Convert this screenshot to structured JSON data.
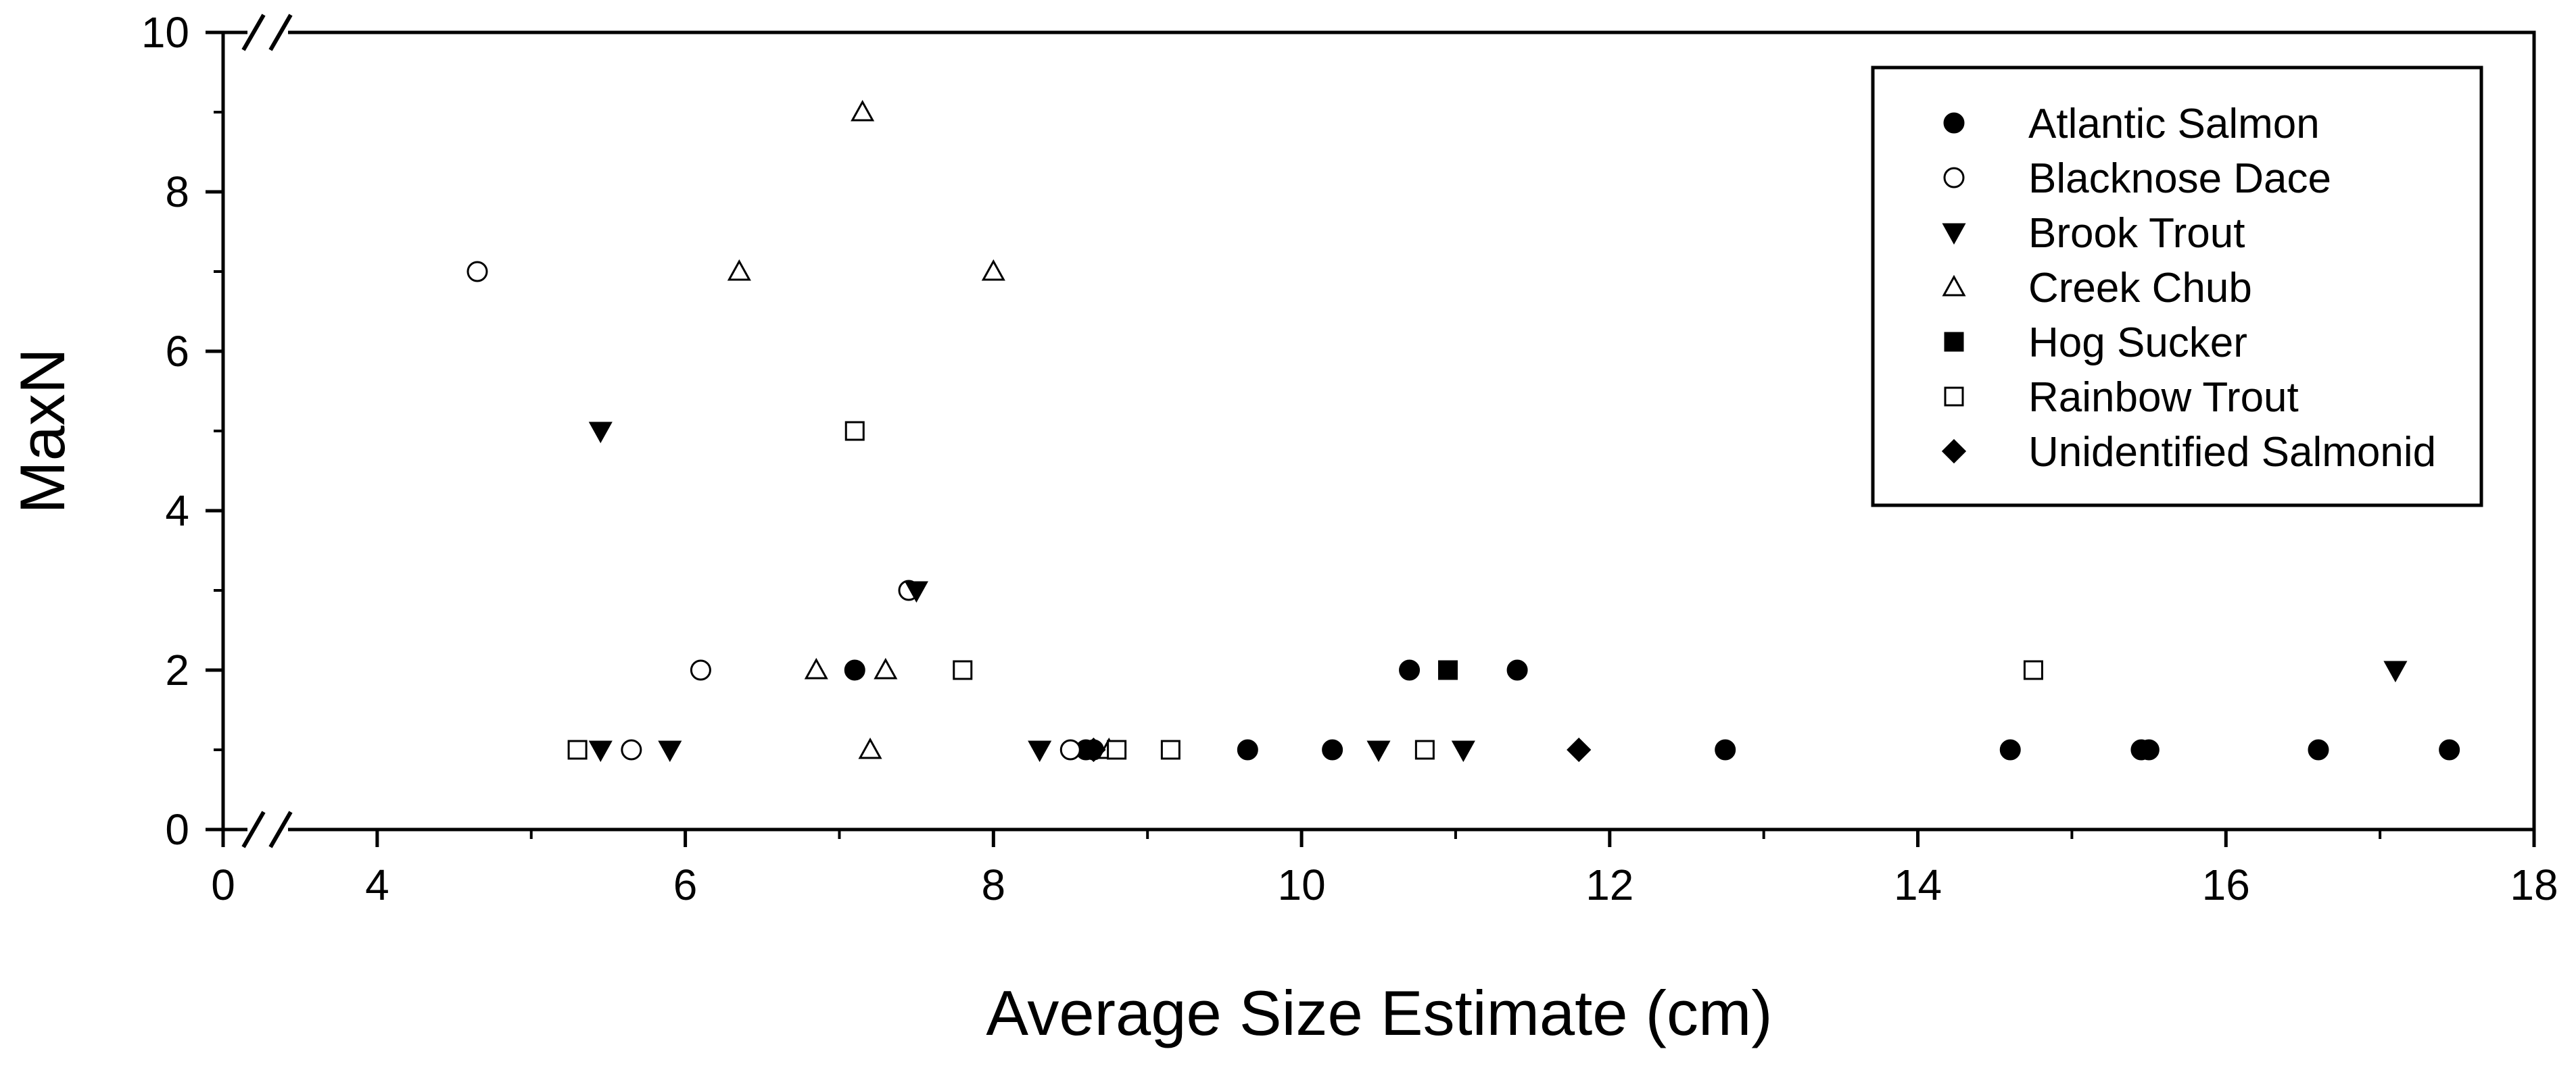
{
  "chart_data": {
    "type": "scatter",
    "title": "",
    "xlabel": "Average Size Estimate (cm)",
    "ylabel": "MaxN",
    "xlim": [
      3,
      18
    ],
    "ylim": [
      0,
      10
    ],
    "x_axis_break": "between 0 and 4",
    "y_axis_break": "at 0 and 10 (left axis)",
    "x_ticks": [
      {
        "value": 0,
        "label": "0"
      },
      {
        "value": 4,
        "label": "4"
      },
      {
        "value": 6,
        "label": "6"
      },
      {
        "value": 8,
        "label": "8"
      },
      {
        "value": 10,
        "label": "10"
      },
      {
        "value": 12,
        "label": "12"
      },
      {
        "value": 14,
        "label": "14"
      },
      {
        "value": 16,
        "label": "16"
      },
      {
        "value": 18,
        "label": "18"
      }
    ],
    "y_ticks": [
      {
        "value": 0,
        "label": "0"
      },
      {
        "value": 2,
        "label": "2"
      },
      {
        "value": 4,
        "label": "4"
      },
      {
        "value": 6,
        "label": "6"
      },
      {
        "value": 8,
        "label": "8"
      },
      {
        "value": 10,
        "label": "10"
      }
    ],
    "legend_position": "top-right",
    "series": [
      {
        "name": "Atlantic Salmon",
        "marker": "filled-circle",
        "points": [
          [
            7.1,
            2
          ],
          [
            8.6,
            1
          ],
          [
            8.65,
            1
          ],
          [
            9.65,
            1
          ],
          [
            10.2,
            1
          ],
          [
            10.7,
            2
          ],
          [
            11.4,
            2
          ],
          [
            12.75,
            1
          ],
          [
            14.6,
            1
          ],
          [
            15.45,
            1
          ],
          [
            15.5,
            1
          ],
          [
            16.6,
            1
          ],
          [
            17.45,
            1
          ]
        ]
      },
      {
        "name": "Blacknose Dace",
        "marker": "open-circle",
        "points": [
          [
            4.65,
            7
          ],
          [
            5.65,
            1
          ],
          [
            6.1,
            2
          ],
          [
            7.45,
            3
          ],
          [
            8.5,
            1
          ]
        ]
      },
      {
        "name": "Brook Trout",
        "marker": "filled-triangle-down",
        "points": [
          [
            5.45,
            5
          ],
          [
            5.45,
            1
          ],
          [
            5.9,
            1
          ],
          [
            7.5,
            3
          ],
          [
            8.3,
            1
          ],
          [
            10.5,
            1
          ],
          [
            11.05,
            1
          ],
          [
            17.1,
            2
          ]
        ]
      },
      {
        "name": "Creek Chub",
        "marker": "open-triangle-up",
        "points": [
          [
            6.35,
            7
          ],
          [
            6.85,
            2
          ],
          [
            7.15,
            9
          ],
          [
            7.2,
            1
          ],
          [
            7.3,
            2
          ],
          [
            8.0,
            7
          ],
          [
            8.75,
            1
          ]
        ]
      },
      {
        "name": "Hog Sucker",
        "marker": "filled-square",
        "points": [
          [
            10.95,
            2
          ]
        ]
      },
      {
        "name": "Rainbow Trout",
        "marker": "open-square",
        "points": [
          [
            5.3,
            1
          ],
          [
            7.1,
            5
          ],
          [
            7.8,
            2
          ],
          [
            8.8,
            1
          ],
          [
            9.15,
            1
          ],
          [
            10.8,
            1
          ],
          [
            14.75,
            2
          ]
        ]
      },
      {
        "name": "Unidentified Salmonid",
        "marker": "filled-diamond",
        "points": [
          [
            8.65,
            1
          ],
          [
            11.8,
            1
          ]
        ]
      }
    ]
  }
}
